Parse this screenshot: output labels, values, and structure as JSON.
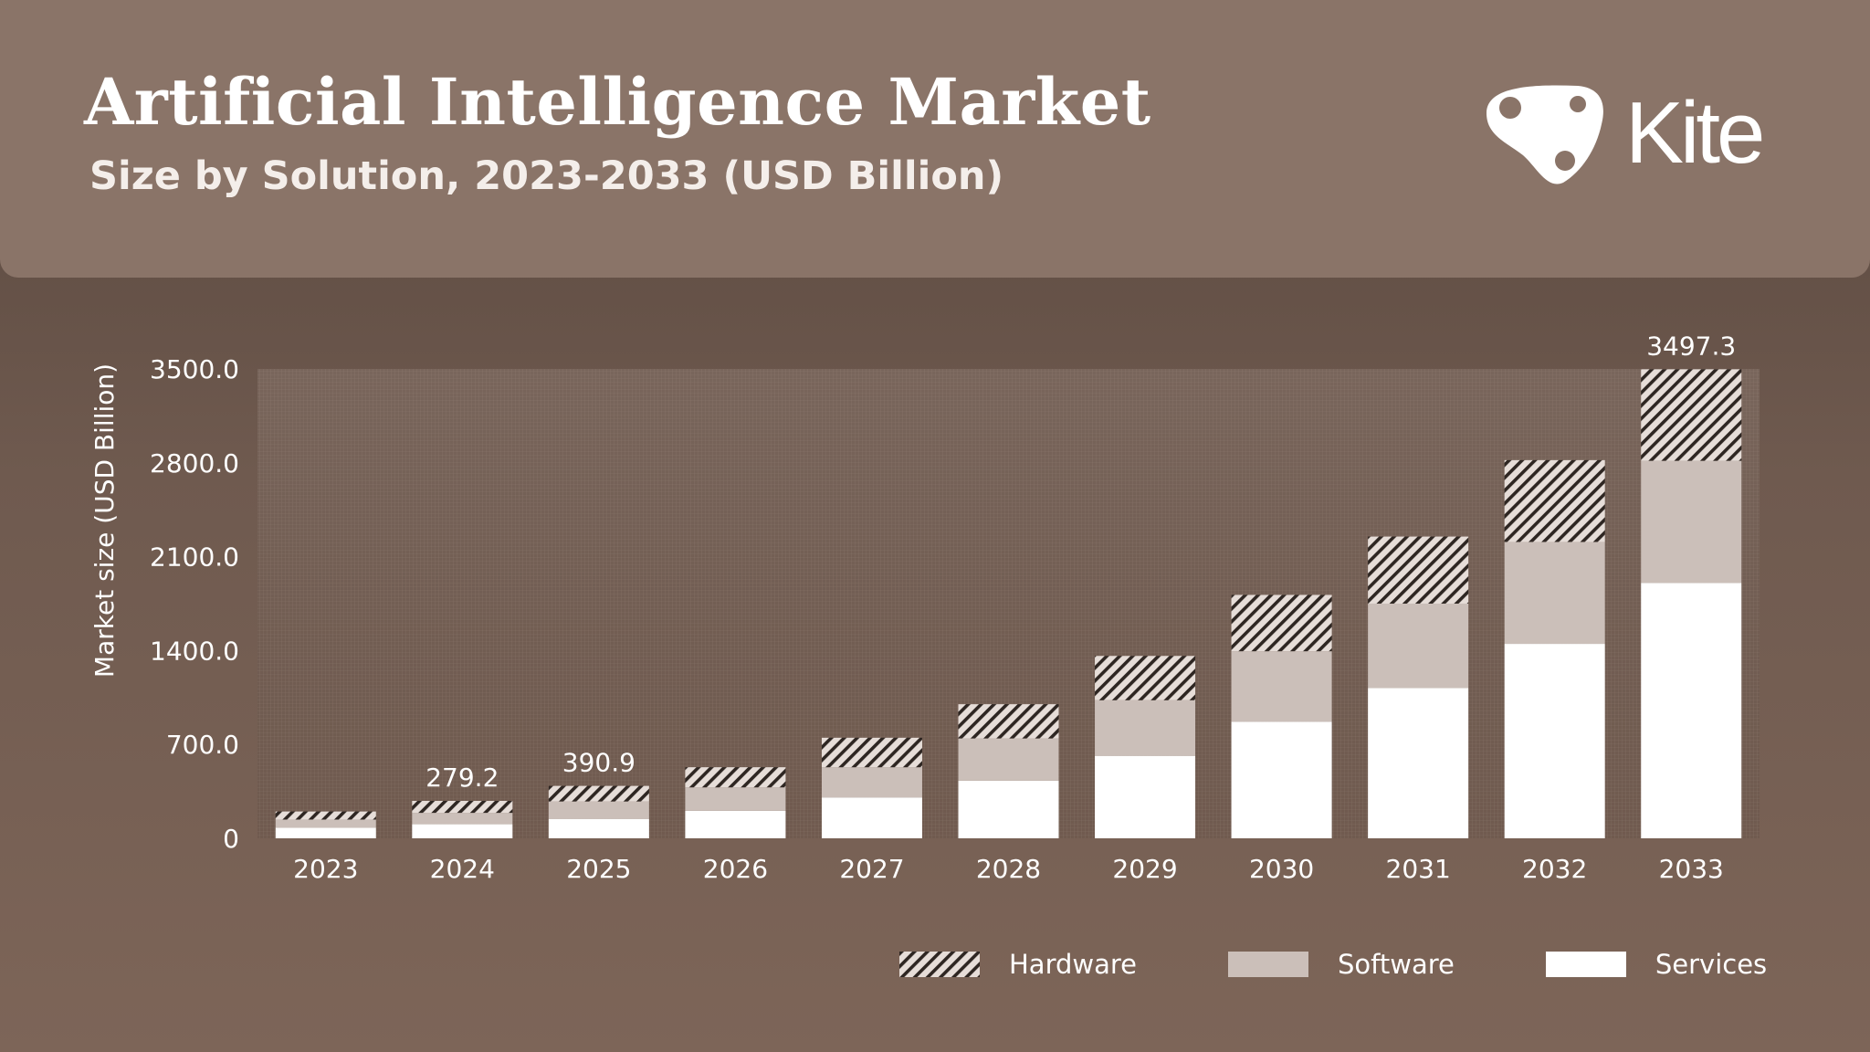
{
  "header": {
    "title": "Artificial Intelligence Market",
    "subtitle": "Size by Solution, 2023-2033 (USD Billion)",
    "brand": "Kite"
  },
  "colors": {
    "services": "#ffffff",
    "software": "#cbbfb9",
    "hardware_stripe": "#2e2622",
    "hardware_base": "#e6ddd8",
    "text": "#ffffff"
  },
  "legend": {
    "hardware": "Hardware",
    "software": "Software",
    "services": "Services"
  },
  "chart_data": {
    "type": "bar",
    "stacked": true,
    "ylabel": "Market size (USD Billion)",
    "xlabel": "",
    "ylim": [
      0,
      3500
    ],
    "yticks": [
      0,
      700,
      1400,
      2100,
      2800,
      3500
    ],
    "ytick_labels": [
      "0",
      "700.0",
      "1400.0",
      "2100.0",
      "2800.0",
      "3500.0"
    ],
    "categories": [
      "2023",
      "2024",
      "2025",
      "2026",
      "2027",
      "2028",
      "2029",
      "2030",
      "2031",
      "2032",
      "2033"
    ],
    "series": [
      {
        "name": "Services",
        "values": [
          80,
          105,
          145,
          205,
          305,
          430,
          615,
          870,
          1120,
          1450,
          1905
        ]
      },
      {
        "name": "Software",
        "values": [
          60,
          85,
          130,
          175,
          225,
          315,
          415,
          525,
          630,
          760,
          910
        ]
      },
      {
        "name": "Hardware",
        "values": [
          60,
          89.2,
          115.9,
          150,
          220,
          255,
          330,
          420,
          500,
          610,
          682.3
        ]
      }
    ],
    "annotations": [
      {
        "category": "2024",
        "label": "279.2",
        "value": 279.2
      },
      {
        "category": "2025",
        "label": "390.9",
        "value": 390.9
      },
      {
        "category": "2033",
        "label": "3497.3",
        "value": 3497.3
      }
    ],
    "grid": true,
    "legend_position": "bottom-right"
  }
}
